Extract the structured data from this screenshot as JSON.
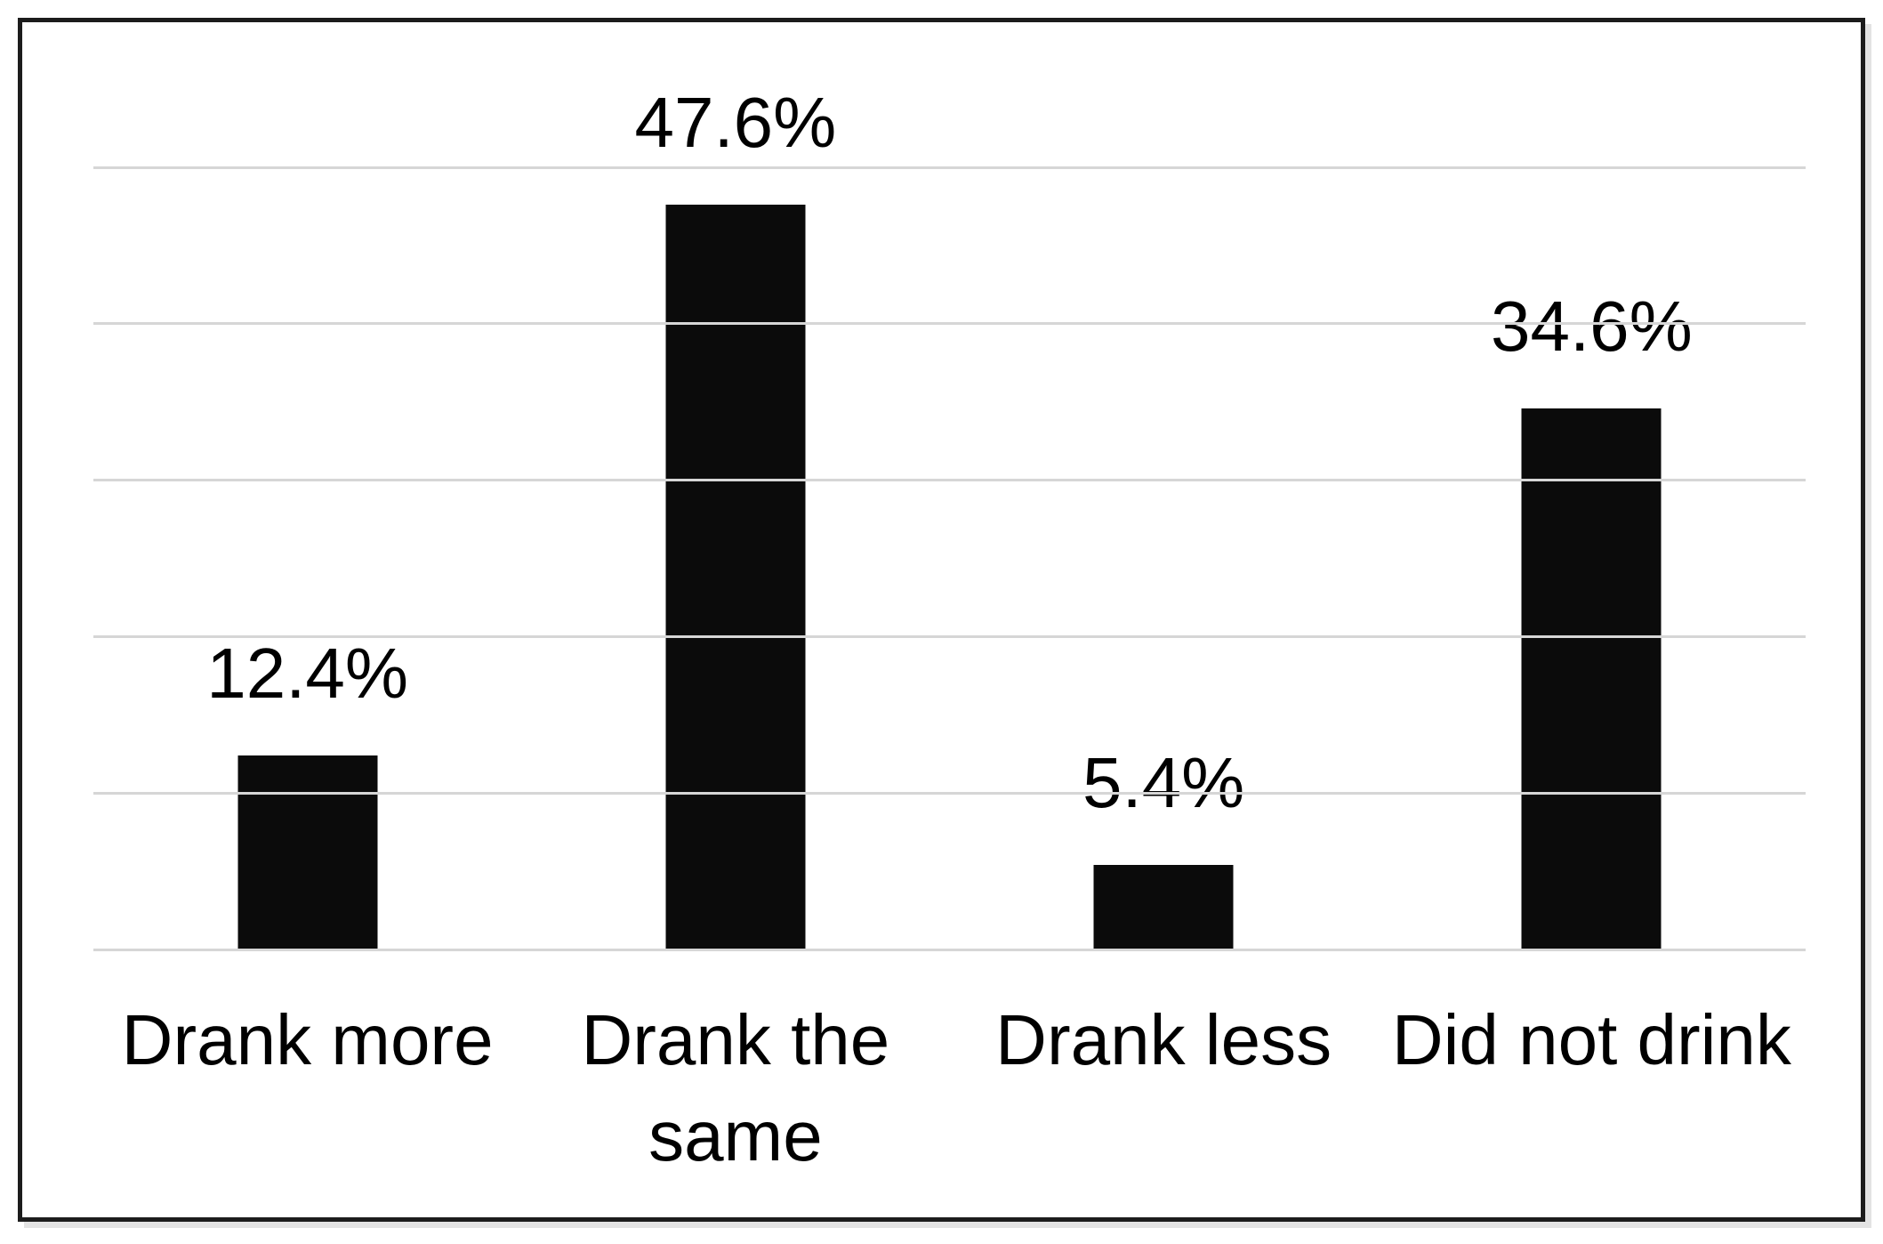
{
  "chart_data": {
    "type": "bar",
    "categories": [
      "Drank more",
      "Drank the\nsame",
      "Drank less",
      "Did not drink"
    ],
    "values": [
      12.4,
      47.6,
      5.4,
      34.6
    ],
    "value_labels": [
      "12.4%",
      "47.6%",
      "5.4%",
      "34.6%"
    ],
    "title": "",
    "xlabel": "",
    "ylabel": "",
    "ylim": [
      0,
      50
    ],
    "yticks": [
      0,
      10,
      20,
      30,
      40,
      50
    ],
    "grid": "horizontal",
    "legend": "none",
    "colors": {
      "bar": "#0b0b0b",
      "gridline": "#d6d6d6",
      "frame_border": "#1c1c1c",
      "background": "#ffffff",
      "text": "#000000"
    }
  }
}
